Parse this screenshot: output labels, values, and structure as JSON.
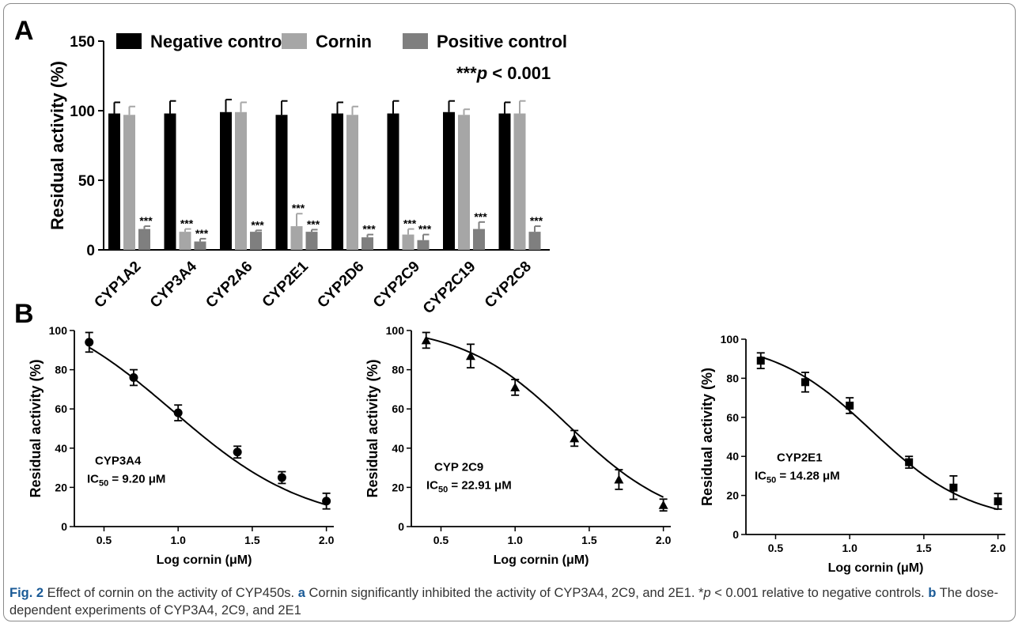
{
  "panels": {
    "a_letter": "A",
    "b_letter": "B"
  },
  "chart_data": [
    {
      "type": "bar",
      "panel": "A",
      "categories": [
        "CYP1A2",
        "CYP3A4",
        "CYP2A6",
        "CYP2E1",
        "CYP2D6",
        "CYP2C9",
        "CYP2C19",
        "CYP2C8"
      ],
      "series": [
        {
          "name": "Negative control",
          "color": "#000000",
          "values": [
            98,
            98,
            99,
            97,
            98,
            98,
            99,
            98
          ],
          "errors": [
            8,
            9,
            9,
            10,
            8,
            9,
            8,
            8
          ],
          "sig": [
            "",
            "",
            "",
            "",
            "",
            "",
            "",
            ""
          ]
        },
        {
          "name": "Cornin",
          "color": "#a6a6a6",
          "values": [
            97,
            13,
            99,
            17,
            97,
            11,
            97,
            98
          ],
          "errors": [
            6,
            2,
            7,
            9,
            6,
            4,
            4,
            9
          ],
          "sig": [
            "",
            "***",
            "",
            "***",
            "",
            "***",
            "",
            ""
          ]
        },
        {
          "name": "Positive control",
          "color": "#7f7f7f",
          "values": [
            15,
            6,
            13,
            13,
            9,
            7,
            15,
            13
          ],
          "errors": [
            2,
            2,
            1,
            1.5,
            2,
            4,
            5,
            4
          ],
          "sig": [
            "***",
            "***",
            "***",
            "***",
            "***",
            "***",
            "***",
            "***"
          ]
        }
      ],
      "ylabel": "Residual activity (%)",
      "ylim": [
        0,
        150
      ],
      "yticks": [
        "0",
        "50",
        "100",
        "150"
      ],
      "annotation": "***p < 0.001",
      "legend": "top"
    },
    {
      "type": "scatter",
      "panel": "B1",
      "label": "CYP3A4",
      "ic50": "IC50 = 9.20 μM",
      "x": [
        0.4,
        0.7,
        1.0,
        1.4,
        1.7,
        2.0
      ],
      "y": [
        94,
        76,
        58,
        38,
        25,
        13
      ],
      "errors": [
        5,
        4,
        4,
        3,
        3,
        4
      ],
      "marker": "circle",
      "curve": {
        "top": 118,
        "bottom": 0,
        "logIC50": 0.964,
        "hill": -0.95
      },
      "xlabel": "Log cornin (μM)",
      "ylabel": "Residual activity (%)",
      "xlim": [
        0.3,
        2.05
      ],
      "ylim": [
        0,
        100
      ],
      "xticks": [
        "0.5",
        "1.0",
        "1.5",
        "2.0"
      ],
      "yticks": [
        "0",
        "20",
        "40",
        "60",
        "80",
        "100"
      ]
    },
    {
      "type": "scatter",
      "panel": "B2",
      "label": "CYP 2C9",
      "ic50": "IC50 = 22.91 μM",
      "x": [
        0.4,
        0.7,
        1.0,
        1.4,
        1.7,
        2.0
      ],
      "y": [
        95,
        87,
        71,
        45,
        24,
        11
      ],
      "errors": [
        4,
        6,
        4,
        4,
        5,
        3
      ],
      "marker": "triangle",
      "curve": {
        "top": 103,
        "bottom": 0,
        "logIC50": 1.36,
        "hill": -1.2
      },
      "xlabel": "Log cornin (μM)",
      "ylabel": "Residual activity (%)",
      "xlim": [
        0.3,
        2.05
      ],
      "ylim": [
        0,
        100
      ],
      "xticks": [
        "0.5",
        "1.0",
        "1.5",
        "2.0"
      ],
      "yticks": [
        "0",
        "20",
        "40",
        "60",
        "80",
        "100"
      ]
    },
    {
      "type": "scatter",
      "panel": "B3",
      "label": "CYP2E1",
      "ic50": "IC50 = 14.28 μM",
      "x": [
        0.4,
        0.7,
        1.0,
        1.4,
        1.7,
        2.0
      ],
      "y": [
        89,
        78,
        66,
        37,
        24,
        17
      ],
      "errors": [
        4,
        5,
        4,
        3,
        6,
        4
      ],
      "marker": "square",
      "curve": {
        "top": 100,
        "bottom": 6,
        "logIC50": 1.15,
        "hill": -1.3
      },
      "xlabel": "Log cornin (μM)",
      "ylabel": "Residual activity (%)",
      "xlim": [
        0.3,
        2.05
      ],
      "ylim": [
        0,
        100
      ],
      "xticks": [
        "0.5",
        "1.0",
        "1.5",
        "2.0"
      ],
      "yticks": [
        "0",
        "20",
        "40",
        "60",
        "80",
        "100"
      ]
    }
  ],
  "caption": {
    "fig": "Fig. 2",
    "text1": " Effect of cornin on the activity of CYP450s. ",
    "a": "a",
    "text2": " Cornin significantly inhibited the activity of CYP3A4, 2C9, and 2E1. *",
    "p": "p",
    "text3": " < 0.001 relative to negative controls. ",
    "b": "b",
    "text4": " The dose-dependent experiments of CYP3A4, 2C9, and 2E1"
  }
}
